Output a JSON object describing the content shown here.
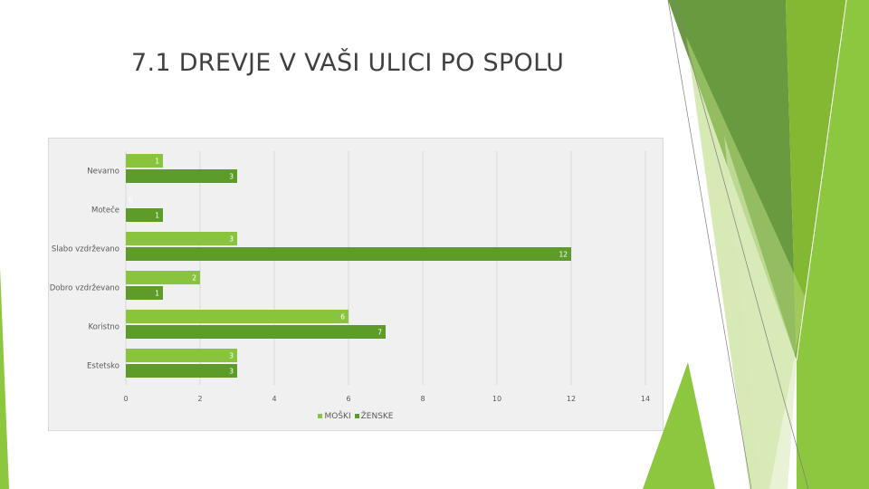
{
  "slide": {
    "title": "7.1 DREVJE V VAŠI ULICI PO SPOLU"
  },
  "colors": {
    "moski": "#8ac43f",
    "zenske": "#5e9c2a",
    "background": "#f0f0f0",
    "grid": "#d9d9d9"
  },
  "chart_data": {
    "type": "bar",
    "orientation": "horizontal",
    "categories": [
      "Nevarno",
      "Moteče",
      "Slabo vzdrževano",
      "Dobro vzdrževano",
      "Koristno",
      "Estetsko"
    ],
    "series": [
      {
        "name": "MOŠKI",
        "values": [
          1,
          0,
          3,
          2,
          6,
          3
        ]
      },
      {
        "name": "ŽENSKE",
        "values": [
          3,
          1,
          12,
          1,
          7,
          3
        ]
      }
    ],
    "x_ticks": [
      0,
      2,
      4,
      6,
      8,
      10,
      12,
      14
    ],
    "xlim": [
      0,
      14
    ],
    "grid": true,
    "legend_position": "bottom"
  }
}
